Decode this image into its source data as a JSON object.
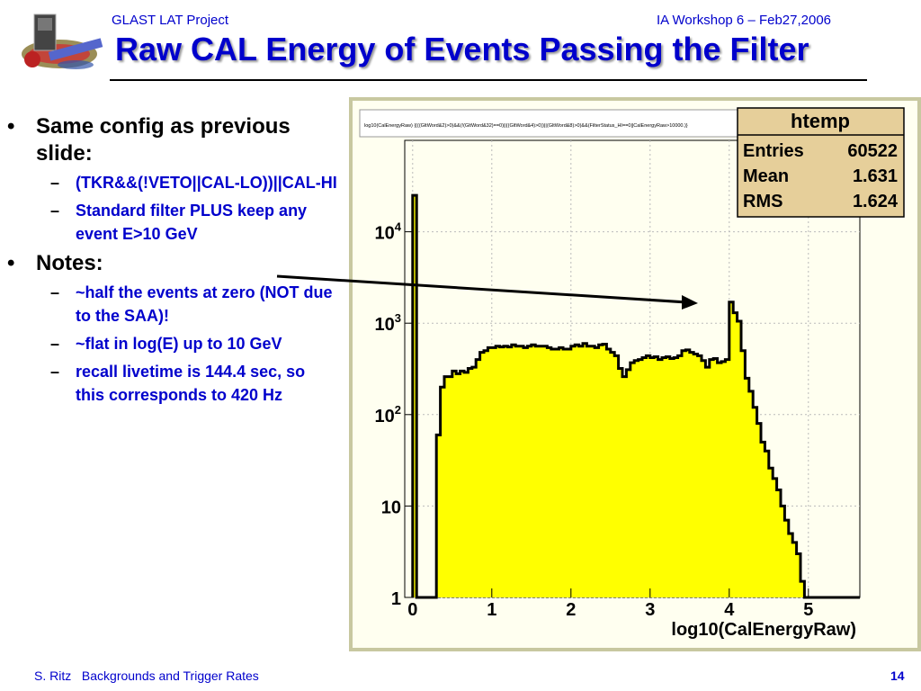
{
  "header": {
    "project": "GLAST LAT Project",
    "event": "IA Workshop 6 –  Feb27,2006"
  },
  "slide_title": "Raw CAL Energy of Events Passing the Filter",
  "bullets": [
    {
      "text": "Same config as previous slide:",
      "sub": [
        "(TKR&&(!VETO||CAL-LO))||CAL-HI",
        "Standard filter PLUS keep any event E>10 GeV"
      ]
    },
    {
      "text": "Notes:",
      "sub": [
        "~half the events at zero (NOT due to the SAA)!",
        "~flat in log(E) up to 10 GeV",
        "recall livetime is 144.4 sec, so this corresponds to 420 Hz"
      ]
    }
  ],
  "footer": {
    "author": "S. Ritz",
    "talk": "Backgrounds and Trigger Rates",
    "page": "14"
  },
  "colors": {
    "accent": "#0000cc",
    "histogram_fill": "#ffff00",
    "frame_bg": "#fffff0"
  },
  "chart_data": {
    "type": "area",
    "cut_string": "log10(CalEnergyRaw) {(((GltWord&2)>0)&&(!(GltWord&32)==0)||((GltWord&4)>0))||(GltWord&8)>0)&&(FilterStatus_HI==0||CalEnergyRaw>10000.)}",
    "xlabel": "log10(CalEnergyRaw)",
    "ylabel": "",
    "xlim": [
      -0.1,
      5.65
    ],
    "ylog": true,
    "ylim": [
      1,
      100000
    ],
    "grid": true,
    "x_ticks": [
      "0",
      "1",
      "2",
      "3",
      "4",
      "5"
    ],
    "y_ticks": [
      "1",
      "10",
      "10^2",
      "10^3",
      "10^4"
    ],
    "stats_box": {
      "name": "htemp",
      "entries": "60522",
      "mean": "1.631",
      "rms": "1.624"
    },
    "series": [
      {
        "x": [
          0.0,
          0.05,
          0.1,
          0.15,
          0.2,
          0.25,
          0.3,
          0.35,
          0.4,
          0.45,
          0.5,
          0.55,
          0.6,
          0.65,
          0.7,
          0.75,
          0.8,
          0.85,
          0.9,
          0.95,
          1.0,
          1.05,
          1.1,
          1.15,
          1.2,
          1.25,
          1.3,
          1.35,
          1.4,
          1.45,
          1.5,
          1.55,
          1.6,
          1.65,
          1.7,
          1.75,
          1.8,
          1.85,
          1.9,
          1.95,
          2.0,
          2.05,
          2.1,
          2.15,
          2.2,
          2.25,
          2.3,
          2.35,
          2.4,
          2.45,
          2.5,
          2.55,
          2.6,
          2.65,
          2.7,
          2.75,
          2.8,
          2.85,
          2.9,
          2.95,
          3.0,
          3.05,
          3.1,
          3.15,
          3.2,
          3.25,
          3.3,
          3.35,
          3.4,
          3.45,
          3.5,
          3.55,
          3.6,
          3.65,
          3.7,
          3.75,
          3.8,
          3.85,
          3.9,
          3.95,
          4.0,
          4.05,
          4.1,
          4.15,
          4.2,
          4.25,
          4.3,
          4.35,
          4.4,
          4.45,
          4.5,
          4.55,
          4.6,
          4.65,
          4.7,
          4.75,
          4.8,
          4.85,
          4.9,
          4.95,
          5.0,
          5.05,
          5.1,
          5.15,
          5.2,
          5.25,
          5.3,
          5.35,
          5.4,
          5.45,
          5.5,
          5.55,
          5.6
        ],
        "y": [
          25000,
          1,
          1,
          1,
          1,
          1,
          60,
          200,
          260,
          260,
          300,
          280,
          300,
          290,
          320,
          330,
          400,
          480,
          500,
          540,
          540,
          560,
          550,
          560,
          550,
          580,
          560,
          560,
          540,
          560,
          580,
          560,
          560,
          560,
          540,
          520,
          520,
          540,
          520,
          520,
          560,
          580,
          560,
          600,
          560,
          560,
          540,
          580,
          590,
          520,
          480,
          440,
          320,
          260,
          310,
          370,
          390,
          400,
          420,
          440,
          420,
          430,
          400,
          420,
          430,
          410,
          420,
          440,
          500,
          510,
          480,
          460,
          440,
          390,
          330,
          400,
          410,
          370,
          380,
          400,
          1700,
          1300,
          1050,
          500,
          250,
          180,
          120,
          80,
          50,
          40,
          26,
          20,
          15,
          10,
          7,
          5,
          4,
          3,
          1.5,
          1,
          1,
          1,
          1,
          1,
          1,
          1,
          1,
          1,
          1,
          1,
          1,
          1,
          1
        ]
      }
    ]
  }
}
